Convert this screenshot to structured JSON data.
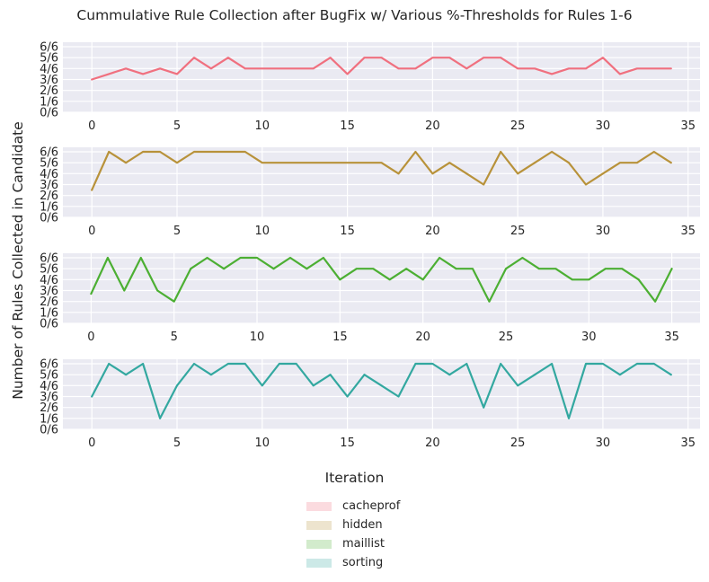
{
  "chart_data": {
    "type": "line",
    "title": "Cummulative Rule Collection after BugFix w/ Various %-Thresholds for Rules 1-6",
    "xlabel": "Iteration",
    "ylabel": "Number of Rules Collected in Candidate",
    "ytick_labels": [
      "0/6",
      "1/6",
      "2/6",
      "3/6",
      "4/6",
      "5/6",
      "6/6"
    ],
    "ylim": [
      0,
      6
    ],
    "grid": true,
    "legend_placement": "bottom-center",
    "panels": [
      {
        "name": "cacheprof",
        "color": "#f0707f",
        "xlim": [
          -1.7,
          35.7
        ],
        "xticks": [
          0,
          5,
          10,
          15,
          20,
          25,
          30,
          35
        ],
        "values": [
          3,
          3.5,
          4,
          3.5,
          4,
          3.5,
          5,
          4,
          5,
          4,
          4,
          4,
          4,
          4,
          5,
          3.5,
          5,
          5,
          4,
          4,
          5,
          5,
          4,
          5,
          5,
          4,
          4,
          3.5,
          4,
          4,
          5,
          3.5,
          4,
          4,
          4
        ]
      },
      {
        "name": "hidden",
        "color": "#b8923a",
        "xlim": [
          -1.7,
          35.7
        ],
        "xticks": [
          0,
          5,
          10,
          15,
          20,
          25,
          30,
          35
        ],
        "values": [
          2.5,
          6,
          5,
          6,
          6,
          5,
          6,
          6,
          6,
          6,
          5,
          5,
          5,
          5,
          5,
          5,
          5,
          5,
          4,
          6,
          4,
          5,
          4,
          3,
          6,
          4,
          5,
          6,
          5,
          3,
          4,
          5,
          5,
          6,
          5
        ]
      },
      {
        "name": "maillist",
        "color": "#4caf33",
        "xlim": [
          -1.7,
          36.7
        ],
        "xticks": [
          0,
          5,
          10,
          15,
          20,
          25,
          30,
          35
        ],
        "values": [
          2.7,
          6,
          3,
          6,
          3,
          2,
          5,
          6,
          5,
          6,
          6,
          5,
          6,
          5,
          6,
          4,
          5,
          5,
          4,
          5,
          4,
          6,
          5,
          5,
          2,
          5,
          6,
          5,
          5,
          4,
          4,
          5,
          5,
          4,
          2,
          5
        ]
      },
      {
        "name": "sorting",
        "color": "#33a8a0",
        "xlim": [
          -1.7,
          35.7
        ],
        "xticks": [
          0,
          5,
          10,
          15,
          20,
          25,
          30,
          35
        ],
        "values": [
          3,
          6,
          5,
          6,
          1,
          4,
          6,
          5,
          6,
          6,
          4,
          6,
          6,
          4,
          5,
          3,
          5,
          4,
          3,
          6,
          6,
          5,
          6,
          2,
          6,
          4,
          5,
          6,
          1,
          6,
          6,
          5,
          6,
          6,
          5
        ]
      }
    ]
  }
}
